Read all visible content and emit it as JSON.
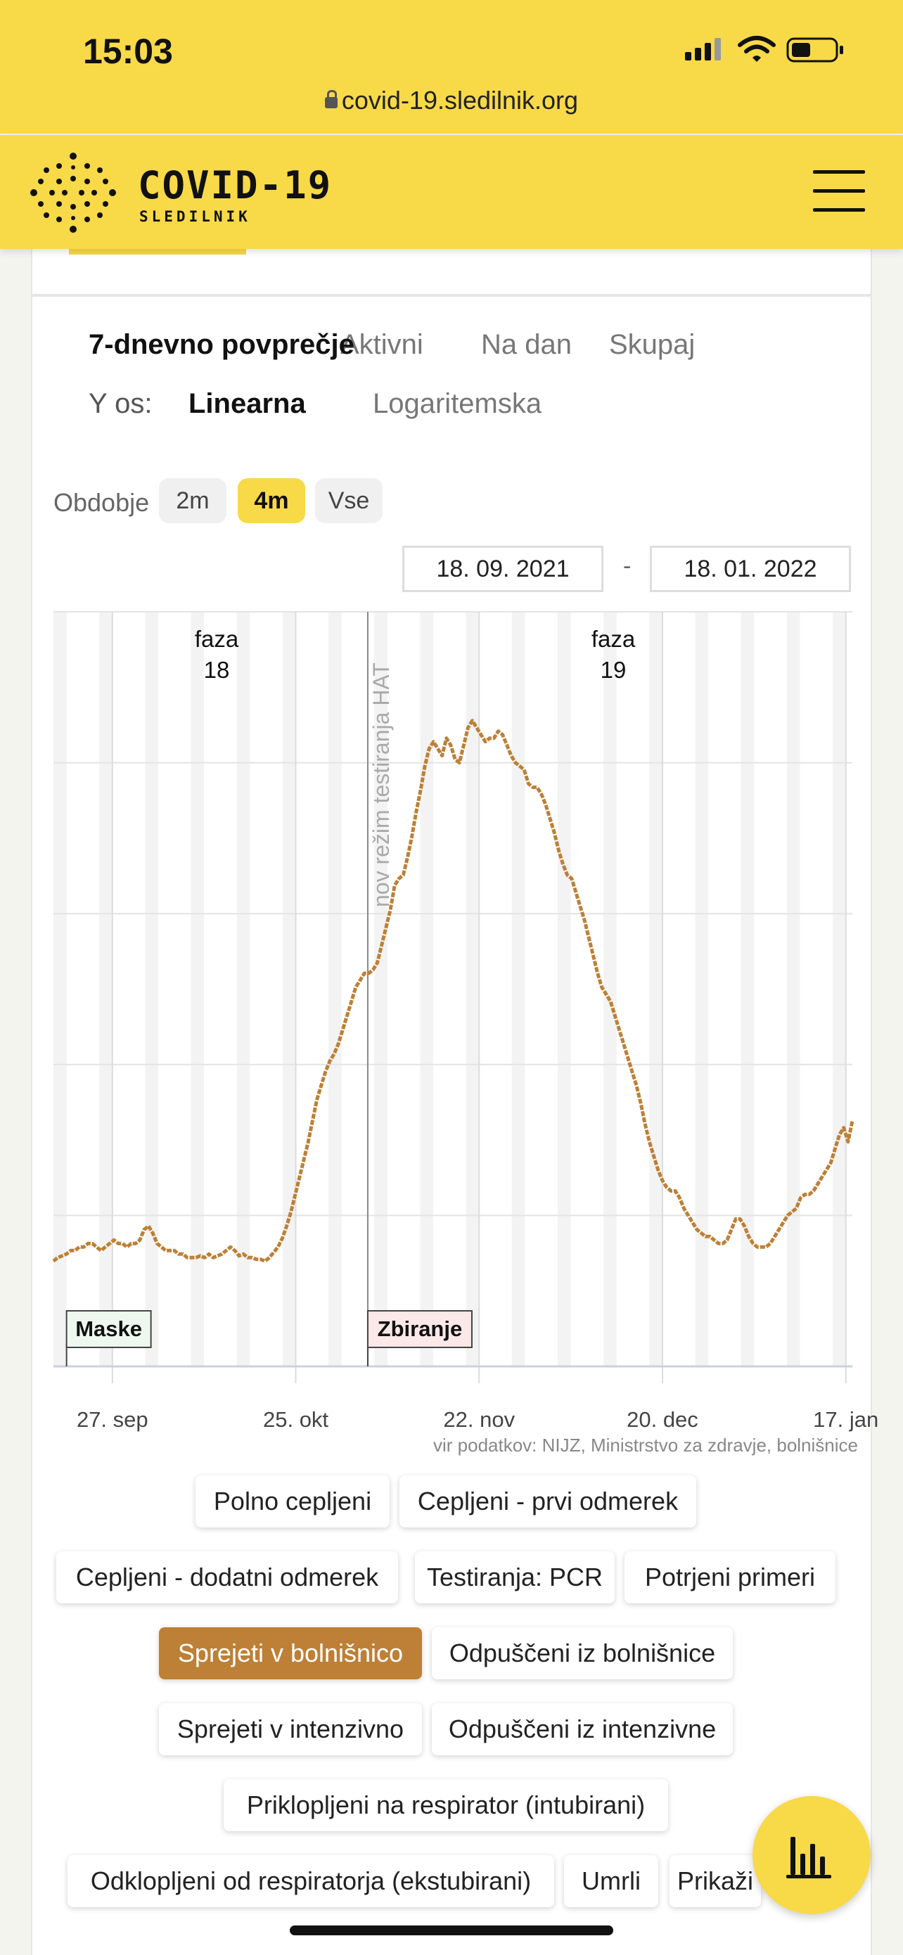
{
  "status": {
    "time": "15:03"
  },
  "browser": {
    "url": "covid-19.sledilnik.org"
  },
  "header": {
    "brand": "COVID-19",
    "brand_sub": "SLEDILNIK"
  },
  "tabs": {
    "items": [
      "7-dnevno povprečje",
      "Aktivni",
      "Na dan",
      "Skupaj"
    ],
    "active": "7-dnevno povprečje"
  },
  "y_axis": {
    "label": "Y os:",
    "options": [
      "Linearna",
      "Logaritemska"
    ],
    "active": "Linearna"
  },
  "period": {
    "label": "Obdobje",
    "options": [
      "2m",
      "4m",
      "Vse"
    ],
    "active": "4m"
  },
  "date_range": {
    "from": "18. 09. 2021",
    "separator": "-",
    "to": "18. 01. 2022"
  },
  "chart_data": {
    "type": "line",
    "series": [
      {
        "name": "Sprejeti v bolnišnico",
        "color": "#bd8036"
      }
    ],
    "x_tick_labels": [
      "27. sep",
      "25. okt",
      "22. nov",
      "20. dec",
      "17. jan"
    ],
    "y_tick_labels": [],
    "grid": true,
    "x_range": [
      "2021-09-18",
      "2022-01-18"
    ],
    "values": [
      30,
      31,
      31.5,
      32,
      33,
      33,
      34,
      34,
      35,
      35,
      34,
      33,
      34,
      35,
      36,
      35,
      35,
      34,
      35,
      35,
      36,
      39,
      40,
      38,
      35,
      34,
      33,
      33,
      33,
      32,
      32,
      31,
      31,
      31,
      31.5,
      31,
      32,
      31,
      31.5,
      32,
      33,
      34,
      33,
      31.5,
      32,
      31,
      31,
      30.5,
      30.5,
      30,
      31,
      32.5,
      34,
      36.5,
      40,
      44,
      49,
      54,
      59,
      64,
      70,
      76,
      80,
      84,
      87,
      89,
      92,
      96,
      100,
      104,
      108,
      110,
      112,
      112,
      113,
      115,
      120,
      125,
      130,
      137,
      139,
      140,
      145,
      151,
      158,
      164,
      171,
      176,
      178,
      176,
      174,
      179,
      177,
      173,
      172,
      177,
      182,
      184,
      182,
      180,
      178,
      179,
      179,
      181,
      180,
      177,
      174,
      172,
      171,
      170,
      166,
      165,
      165,
      163,
      160,
      156,
      152,
      147,
      143,
      140,
      139,
      135,
      131,
      127,
      122,
      117,
      112,
      108,
      106,
      104,
      100,
      96,
      92,
      88,
      84,
      80,
      75,
      69,
      64,
      60,
      56,
      53,
      51,
      50,
      50,
      48,
      45,
      43,
      41,
      39,
      38,
      37,
      37,
      36,
      35,
      35,
      36,
      39,
      42,
      42,
      40,
      37,
      35,
      34,
      34,
      34,
      35,
      37,
      39,
      41,
      43,
      44,
      45,
      48,
      49,
      49,
      50,
      52,
      54,
      56,
      58,
      62,
      66,
      68,
      64,
      70
    ],
    "phases": [
      {
        "label": "faza",
        "value": "18"
      },
      {
        "label": "faza",
        "value": "19"
      }
    ],
    "annotations": [
      {
        "text": "nov režim testiranja HAT",
        "date": "2021-11-05"
      },
      {
        "text": "Maske",
        "date": "2021-09-20"
      },
      {
        "text": "Zbiranje",
        "date": "2021-11-05"
      }
    ]
  },
  "source_text": "vir podatkov: NIJZ, Ministrstvo za zdravje, bolnišnice",
  "series_buttons": [
    {
      "label": "Polno cepljeni",
      "active": false
    },
    {
      "label": "Cepljeni - prvi odmerek",
      "active": false
    },
    {
      "label": "Cepljeni - dodatni odmerek",
      "active": false
    },
    {
      "label": "Testiranja: PCR",
      "active": false
    },
    {
      "label": "Potrjeni primeri",
      "active": false
    },
    {
      "label": "Sprejeti v bolnišnico",
      "active": true
    },
    {
      "label": "Odpuščeni iz bolnišnice",
      "active": false
    },
    {
      "label": "Sprejeti v intenzivno",
      "active": false
    },
    {
      "label": "Odpuščeni iz intenzivne",
      "active": false
    },
    {
      "label": "Priklopljeni na respirator (intubirani)",
      "active": false
    },
    {
      "label": "Odklopljeni od respiratorja (ekstubirani)",
      "active": false
    },
    {
      "label": "Umrli",
      "active": false
    },
    {
      "label": "Prikaži",
      "active": false
    }
  ],
  "fab": {
    "icon": "bar-chart-icon"
  }
}
